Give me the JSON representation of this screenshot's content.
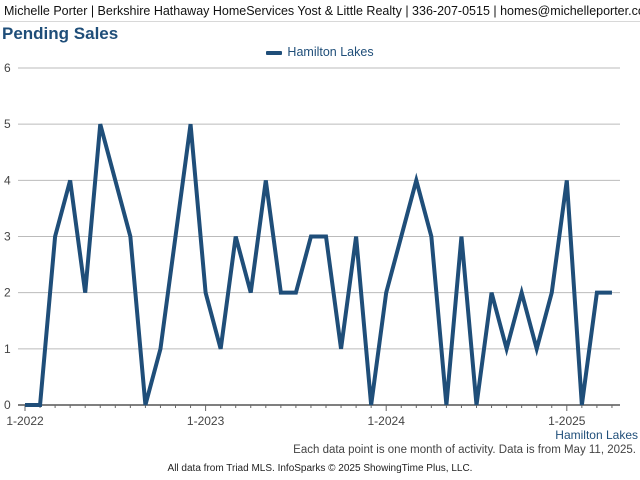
{
  "header": {
    "agent_line": "Michelle Porter | Berkshire Hathaway HomeServices Yost & Little Realty | 336-207-0515 | homes@michelleporter.com"
  },
  "notes": {
    "activity_note": "Each data point is one month of activity. Data is from May 11, 2025.",
    "footer": "All data from Triad MLS. InfoSparks © 2025 ShowingTime Plus, LLC."
  },
  "colors": {
    "series": "#1f4e79",
    "grid": "#bbbbbb"
  },
  "chart_data": {
    "type": "line",
    "title": "Pending Sales",
    "xlabel": "",
    "ylabel": "",
    "ylim": [
      0,
      6
    ],
    "y_ticks": [
      0,
      1,
      2,
      3,
      4,
      5,
      6
    ],
    "x_tick_labels": [
      "1-2022",
      "1-2023",
      "1-2024",
      "1-2025"
    ],
    "legend_position": "top-center",
    "grid": true,
    "x": [
      "1-2022",
      "2-2022",
      "3-2022",
      "4-2022",
      "5-2022",
      "6-2022",
      "7-2022",
      "8-2022",
      "9-2022",
      "10-2022",
      "11-2022",
      "12-2022",
      "1-2023",
      "2-2023",
      "3-2023",
      "4-2023",
      "5-2023",
      "6-2023",
      "7-2023",
      "8-2023",
      "9-2023",
      "10-2023",
      "11-2023",
      "12-2023",
      "1-2024",
      "2-2024",
      "3-2024",
      "4-2024",
      "5-2024",
      "6-2024",
      "7-2024",
      "8-2024",
      "9-2024",
      "10-2024",
      "11-2024",
      "12-2024",
      "1-2025",
      "2-2025",
      "3-2025",
      "4-2025"
    ],
    "series": [
      {
        "name": "Hamilton Lakes",
        "values": [
          0,
          0,
          3,
          4,
          2,
          5,
          4,
          3,
          0,
          1,
          3,
          5,
          2,
          1,
          3,
          2,
          4,
          2,
          2,
          3,
          3,
          1,
          3,
          0,
          2,
          3,
          4,
          3,
          0,
          3,
          0,
          2,
          1,
          2,
          1,
          2,
          4,
          0,
          2,
          2
        ]
      }
    ]
  }
}
